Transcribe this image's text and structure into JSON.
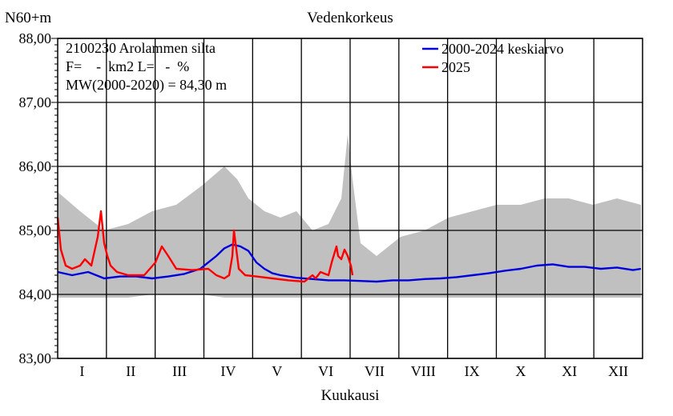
{
  "chart_data": {
    "type": "line",
    "title": "Vedenkorkeus",
    "ylabel": "N60+m",
    "xlabel": "Kuukausi",
    "ylim": [
      83.0,
      88.0
    ],
    "yticks": [
      "83,00",
      "84,00",
      "85,00",
      "86,00",
      "87,00",
      "88,00"
    ],
    "ytick_values": [
      83,
      84,
      85,
      86,
      87,
      88
    ],
    "months": [
      "I",
      "II",
      "III",
      "IV",
      "V",
      "VI",
      "VII",
      "VIII",
      "IX",
      "X",
      "XI",
      "XII"
    ],
    "grid": true,
    "info": {
      "station": "2100230 Arolammen silta",
      "area": "F=    -  km2 L=   -  %",
      "mean": "MW(2000-2020) = 84,30 m"
    },
    "legend": [
      {
        "name": "2000-2024 keskiarvo",
        "color": "#0000dd"
      },
      {
        "name": "2025",
        "color": "#ff0000"
      }
    ],
    "range_band": {
      "color": "#c0c0c0",
      "x_day": [
        1,
        15,
        20,
        30,
        45,
        60,
        75,
        91,
        105,
        113,
        120,
        130,
        140,
        150,
        160,
        170,
        178,
        182,
        185,
        190,
        200,
        215,
        230,
        245,
        260,
        275,
        290,
        305,
        320,
        335,
        350,
        365
      ],
      "upper": [
        85.6,
        85.3,
        85.2,
        85.0,
        85.1,
        85.3,
        85.4,
        85.7,
        86.0,
        85.8,
        85.5,
        85.3,
        85.2,
        85.3,
        85.0,
        85.1,
        85.5,
        86.5,
        85.8,
        84.8,
        84.6,
        84.9,
        85.0,
        85.2,
        85.3,
        85.4,
        85.4,
        85.5,
        85.5,
        85.4,
        85.5,
        85.4
      ],
      "lower": [
        83.95,
        83.95,
        83.95,
        83.95,
        83.95,
        84.0,
        84.0,
        84.0,
        83.95,
        83.95,
        83.95,
        83.95,
        83.95,
        83.95,
        83.95,
        83.95,
        83.95,
        83.95,
        83.95,
        83.95,
        83.95,
        83.95,
        83.95,
        83.95,
        83.95,
        83.95,
        83.95,
        83.95,
        83.95,
        83.95,
        83.95,
        83.95
      ]
    },
    "series": [
      {
        "name": "2000-2024 keskiarvo",
        "color": "#0000dd",
        "x_day": [
          1,
          10,
          20,
          30,
          40,
          50,
          60,
          70,
          80,
          90,
          100,
          105,
          110,
          115,
          120,
          125,
          130,
          135,
          140,
          150,
          160,
          170,
          180,
          190,
          200,
          210,
          220,
          230,
          240,
          250,
          260,
          270,
          280,
          290,
          300,
          310,
          320,
          330,
          340,
          350,
          360,
          365
        ],
        "values": [
          84.35,
          84.3,
          84.35,
          84.25,
          84.28,
          84.28,
          84.25,
          84.28,
          84.32,
          84.4,
          84.6,
          84.72,
          84.78,
          84.75,
          84.68,
          84.5,
          84.4,
          84.33,
          84.3,
          84.26,
          84.24,
          84.22,
          84.22,
          84.21,
          84.2,
          84.22,
          84.22,
          84.24,
          84.25,
          84.27,
          84.3,
          84.33,
          84.37,
          84.4,
          84.45,
          84.47,
          84.43,
          84.43,
          84.4,
          84.42,
          84.38,
          84.4
        ]
      },
      {
        "name": "2025",
        "color": "#ff0000",
        "x_day": [
          1,
          3,
          6,
          10,
          15,
          18,
          22,
          26,
          28,
          30,
          32,
          34,
          38,
          45,
          55,
          62,
          66,
          70,
          75,
          85,
          95,
          100,
          105,
          108,
          110,
          111,
          112,
          114,
          118,
          125,
          135,
          145,
          155,
          160,
          162,
          165,
          170,
          172,
          175,
          176,
          178,
          180,
          182,
          184,
          185
        ],
        "values": [
          85.2,
          84.7,
          84.45,
          84.4,
          84.45,
          84.55,
          84.45,
          84.9,
          85.3,
          84.8,
          84.6,
          84.45,
          84.35,
          84.3,
          84.3,
          84.5,
          84.75,
          84.6,
          84.4,
          84.38,
          84.4,
          84.3,
          84.25,
          84.3,
          84.6,
          85.0,
          84.8,
          84.4,
          84.3,
          84.28,
          84.25,
          84.22,
          84.2,
          84.3,
          84.25,
          84.35,
          84.3,
          84.5,
          84.75,
          84.6,
          84.55,
          84.7,
          84.6,
          84.45,
          84.3
        ]
      }
    ]
  }
}
